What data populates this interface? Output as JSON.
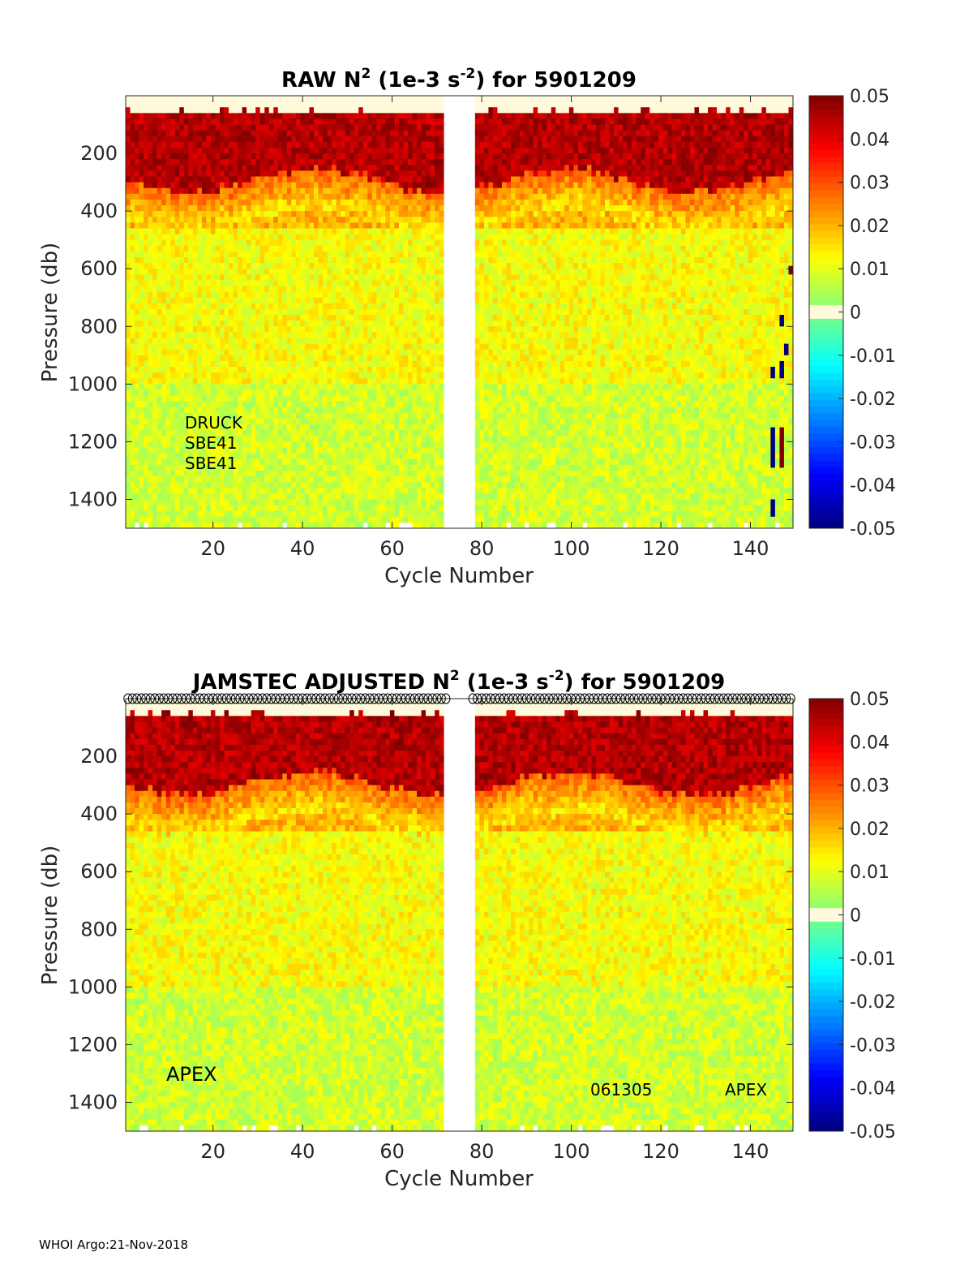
{
  "footer": "WHOI Argo:21-Nov-2018",
  "colorbar": {
    "ticks": [
      "0.05",
      "0.04",
      "0.03",
      "0.02",
      "0.01",
      "0",
      "-0.01",
      "-0.02",
      "-0.03",
      "-0.04",
      "-0.05"
    ],
    "range": [
      -0.05,
      0.05
    ],
    "colormap": "jet"
  },
  "chart_data": [
    {
      "type": "heatmap",
      "title_main": "RAW N",
      "title_sup": "2",
      "title_mid": " (1e-3 s",
      "title_sup2": "-2",
      "title_end": ") for 5901209",
      "xlabel": "Cycle Number",
      "ylabel": "Pressure (db)",
      "xlim": [
        1,
        149
      ],
      "ylim": [
        1500,
        0
      ],
      "xticks": [
        20,
        40,
        60,
        80,
        100,
        120,
        140
      ],
      "yticks": [
        200,
        400,
        600,
        800,
        1000,
        1200,
        1400
      ],
      "missing_cycles": [
        72,
        78
      ],
      "annotations": [
        "DRUCK",
        "SBE41",
        "SBE41"
      ],
      "clim": [
        -0.05,
        0.05
      ],
      "regime": [
        {
          "pressure": [
            0,
            50
          ],
          "value": 0.0
        },
        {
          "pressure": [
            50,
            290
          ],
          "value": 0.05
        },
        {
          "pressure": [
            290,
            450
          ],
          "value": 0.02
        },
        {
          "pressure": [
            450,
            1000
          ],
          "value": 0.012
        },
        {
          "pressure": [
            1000,
            1500
          ],
          "value": 0.008
        }
      ],
      "anomalies": [
        {
          "cycle": 145,
          "pressure": [
            940,
            980
          ],
          "value": -0.05
        },
        {
          "cycle": 145,
          "pressure": [
            1150,
            1290
          ],
          "value": -0.05
        },
        {
          "cycle": 147,
          "pressure": [
            760,
            800
          ],
          "value": -0.05
        },
        {
          "cycle": 147,
          "pressure": [
            920,
            980
          ],
          "value": -0.05
        },
        {
          "cycle": 147,
          "pressure": [
            1150,
            1290
          ],
          "value": 0.05
        },
        {
          "cycle": 148,
          "pressure": [
            860,
            900
          ],
          "value": -0.05
        },
        {
          "cycle": 145,
          "pressure": [
            1400,
            1460
          ],
          "value": -0.05
        },
        {
          "cycle": 149,
          "pressure": [
            590,
            620
          ],
          "value": 0.05
        }
      ]
    },
    {
      "type": "heatmap",
      "title_main": "JAMSTEC  ADJUSTED N",
      "title_sup": "2",
      "title_mid": " (1e-3 s",
      "title_sup2": "-2",
      "title_end": ") for 5901209",
      "xlabel": "Cycle Number",
      "ylabel": "Pressure (db)",
      "xlim": [
        1,
        149
      ],
      "ylim": [
        1500,
        0
      ],
      "xticks": [
        20,
        40,
        60,
        80,
        100,
        120,
        140
      ],
      "yticks": [
        200,
        400,
        600,
        800,
        1000,
        1200,
        1400
      ],
      "missing_cycles": [
        72,
        78
      ],
      "annotations": [
        "APEX",
        "061305",
        "APEX"
      ],
      "clim": [
        -0.05,
        0.05
      ],
      "regime": [
        {
          "pressure": [
            0,
            50
          ],
          "value": 0.0
        },
        {
          "pressure": [
            50,
            290
          ],
          "value": 0.05
        },
        {
          "pressure": [
            290,
            450
          ],
          "value": 0.02
        },
        {
          "pressure": [
            450,
            1000
          ],
          "value": 0.012
        },
        {
          "pressure": [
            1000,
            1500
          ],
          "value": 0.008
        }
      ],
      "anomalies": []
    }
  ]
}
